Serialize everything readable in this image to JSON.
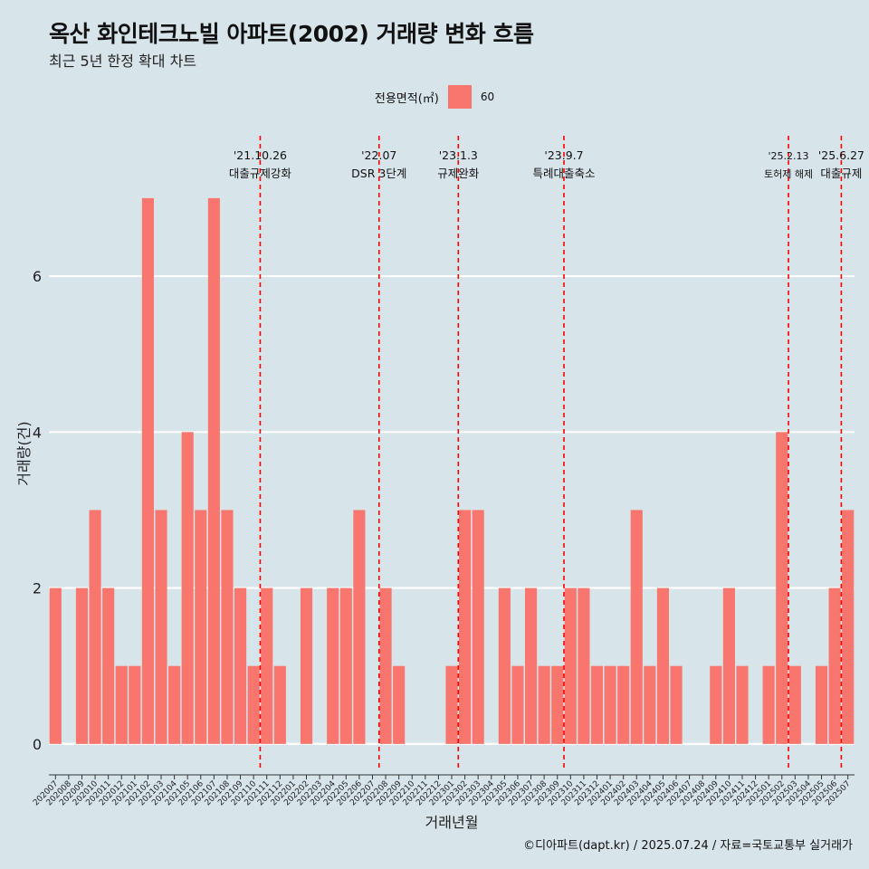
{
  "header": {
    "title": "옥산 화인테크노빌 아파트(2002) 거래량 변화 흐름",
    "subtitle": "최근 5년 한정 확대 차트"
  },
  "legend": {
    "title": "전용면적(㎡)",
    "item": "60",
    "color": "#f8766d"
  },
  "caption": "©디아파트(dapt.kr) / 2025.07.24 / 자료=국토교통부 실거래가",
  "chart_data": {
    "type": "bar",
    "xlabel": "거래년월",
    "ylabel": "거래량(건)",
    "ylim": [
      -0.35,
      7.8
    ],
    "yticks": [
      0,
      2,
      4,
      6
    ],
    "grid": true,
    "legend_position": "top",
    "categories": [
      "202007",
      "202008",
      "202009",
      "202010",
      "202011",
      "202012",
      "202101",
      "202102",
      "202103",
      "202104",
      "202105",
      "202106",
      "202107",
      "202108",
      "202109",
      "202110",
      "202111",
      "202112",
      "202201",
      "202202",
      "202203",
      "202204",
      "202205",
      "202206",
      "202207",
      "202208",
      "202209",
      "202210",
      "202211",
      "202212",
      "202301",
      "202302",
      "202303",
      "202304",
      "202305",
      "202306",
      "202307",
      "202308",
      "202309",
      "202310",
      "202311",
      "202312",
      "202401",
      "202402",
      "202403",
      "202404",
      "202405",
      "202406",
      "202407",
      "202408",
      "202409",
      "202410",
      "202411",
      "202412",
      "202501",
      "202502",
      "202503",
      "202504",
      "202505",
      "202506",
      "202507"
    ],
    "series": [
      {
        "name": "60",
        "color": "#f8766d",
        "values": [
          2,
          0,
          2,
          3,
          2,
          1,
          1,
          7,
          3,
          1,
          4,
          3,
          7,
          3,
          2,
          1,
          2,
          1,
          0,
          2,
          0,
          2,
          2,
          3,
          0,
          2,
          1,
          0,
          0,
          0,
          1,
          3,
          3,
          0,
          2,
          1,
          2,
          1,
          1,
          2,
          2,
          1,
          1,
          1,
          3,
          1,
          2,
          1,
          0,
          0,
          1,
          2,
          1,
          0,
          1,
          4,
          1,
          0,
          1,
          2,
          3
        ]
      }
    ],
    "annotations": [
      {
        "date": "'21.10.26",
        "label": "대출규제강화",
        "after_index": 15.0
      },
      {
        "date": "'22.07",
        "label": "DSR 3단계",
        "after_index": 24.0
      },
      {
        "date": "'23.1.3",
        "label": "규제완화",
        "after_index": 30.0
      },
      {
        "date": "'23.9.7",
        "label": "특례대출축소",
        "after_index": 38.0
      },
      {
        "date": "'25.2.13",
        "label": "토허제 해제",
        "after_index": 55.0
      },
      {
        "date": "'25.6.27",
        "label": "대출규제",
        "after_index": 59.0
      }
    ],
    "annotation_color": "#ff0000"
  }
}
